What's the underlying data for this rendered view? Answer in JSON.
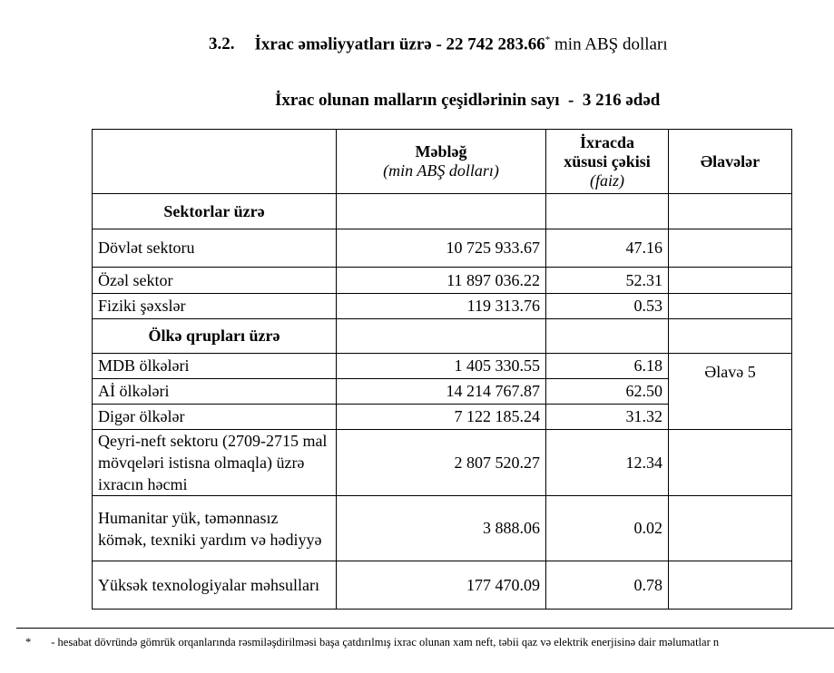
{
  "title": {
    "number": "3.2.",
    "text": "İxrac əməliyyatları üzrə - 22 742 283.66",
    "mark": "*",
    "unit": " min ABŞ dolları"
  },
  "subtitle": "İxrac olunan malların çeşidlərinin sayı  -  3 216 ədəd",
  "table": {
    "headers": {
      "amount": "Məbləğ",
      "amount_unit": "(min ABŞ dolları)",
      "share1": "İxracda",
      "share2": "xüsusi çəkisi",
      "share_unit": "(faiz)",
      "notes": "Əlavələr"
    },
    "sections": {
      "sectors": "Sektorlar üzrə",
      "countries": "Ölkə qrupları üzrə"
    },
    "rows": [
      {
        "label": "Dövlət sektoru",
        "amount": "10 725 933.67",
        "share": "47.16"
      },
      {
        "label": "Özəl sektor",
        "amount": "11 897 036.22",
        "share": "52.31"
      },
      {
        "label": "Fiziki şəxslər",
        "amount": "119 313.76",
        "share": "0.53"
      },
      {
        "label": "MDB ölkələri",
        "amount": "1 405 330.55",
        "share": "6.18"
      },
      {
        "label": "Aİ ölkələri",
        "amount": "14 214 767.87",
        "share": "62.50"
      },
      {
        "label": "Digər ölkələr",
        "amount": "7 122 185.24",
        "share": "31.32"
      },
      {
        "label": "Qeyri-neft sektoru (2709-2715 mal mövqeləri istisna olmaqla) üzrə ixracın həcmi",
        "amount": "2 807 520.27",
        "share": "12.34"
      },
      {
        "label": "Humanitar yük, təmənnasız kömək, texniki yardım və hədiyyə",
        "amount": "3 888.06",
        "share": "0.02"
      },
      {
        "label": "Yüksək texnologiyalar məhsulları",
        "amount": "177 470.09",
        "share": "0.78"
      }
    ],
    "appendix": "Əlavə 5"
  },
  "footnote": {
    "mark": "*",
    "text": "- hesabat dövründə gömrük orqanlarında rəsmiləşdirilməsi başa çatdırılmış ixrac olunan xam neft, təbii qaz və elektrik enerjisinə dair məlumatlar n"
  }
}
